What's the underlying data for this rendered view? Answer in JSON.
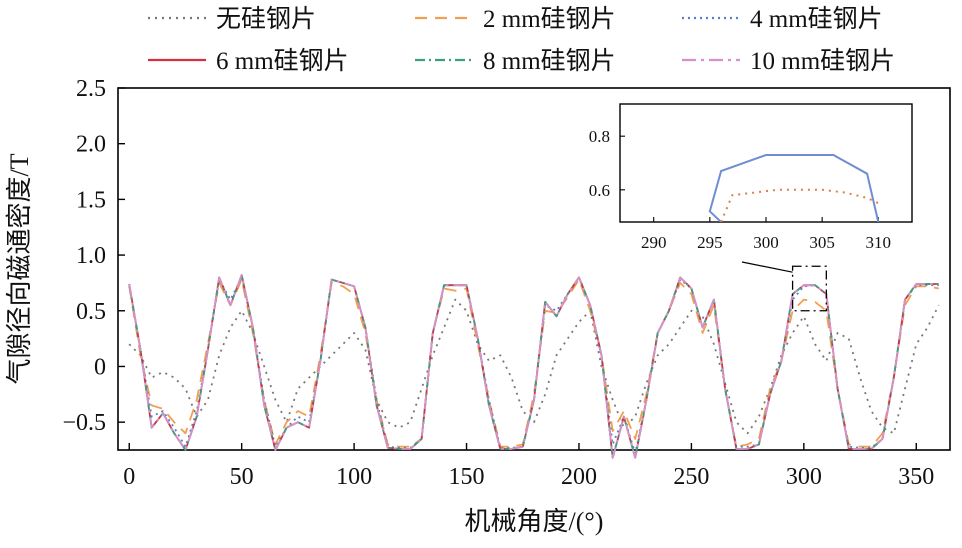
{
  "chart_data": {
    "type": "line",
    "xlabel": "机械角度/(°)",
    "ylabel": "气隙径向磁通密度/T",
    "xlim": [
      -5,
      365
    ],
    "ylim": [
      -0.75,
      2.5
    ],
    "xticks": [
      "0",
      "50",
      "100",
      "150",
      "200",
      "250",
      "300",
      "350"
    ],
    "yticks": [
      "−0.5",
      "0",
      "0.5",
      "1.0",
      "1.5",
      "2.0",
      "2.5"
    ],
    "grid": false,
    "legend_position": "top",
    "series": [
      {
        "name": "无硅钢片",
        "color": "#777777",
        "dash": "2,5",
        "x": [
          0,
          5,
          10,
          15,
          20,
          25,
          30,
          35,
          40,
          45,
          50,
          55,
          60,
          65,
          70,
          75,
          80,
          85,
          90,
          95,
          100,
          105,
          110,
          115,
          120,
          125,
          130,
          135,
          140,
          145,
          150,
          155,
          160,
          165,
          170,
          175,
          180,
          185,
          190,
          195,
          200,
          205,
          210,
          215,
          220,
          225,
          230,
          235,
          240,
          245,
          250,
          255,
          260,
          265,
          270,
          275,
          280,
          285,
          290,
          295,
          300,
          305,
          310,
          315,
          320,
          325,
          330,
          335,
          340,
          345,
          350,
          355,
          360
        ],
        "y": [
          0.2,
          0.1,
          -0.1,
          -0.05,
          -0.1,
          -0.2,
          -0.45,
          -0.3,
          0.1,
          0.35,
          0.5,
          0.3,
          0.0,
          -0.3,
          -0.5,
          -0.2,
          -0.1,
          0.0,
          0.1,
          0.2,
          0.3,
          0.15,
          -0.3,
          -0.5,
          -0.55,
          -0.5,
          -0.2,
          0.1,
          0.35,
          0.6,
          0.5,
          0.2,
          0.05,
          0.1,
          -0.1,
          -0.4,
          -0.5,
          -0.25,
          0.1,
          0.25,
          0.4,
          0.5,
          0.0,
          -0.3,
          -0.55,
          -0.45,
          -0.15,
          0.1,
          0.2,
          0.35,
          0.5,
          0.45,
          0.2,
          -0.15,
          -0.5,
          -0.6,
          -0.45,
          -0.2,
          0.1,
          0.3,
          0.45,
          0.2,
          0.05,
          0.3,
          0.25,
          -0.1,
          -0.4,
          -0.55,
          -0.6,
          -0.2,
          0.2,
          0.35,
          0.55
        ]
      },
      {
        "name": "2 mm硅钢片",
        "color": "#f0a050",
        "dash": "12,8",
        "x": [
          0,
          5,
          10,
          15,
          20,
          25,
          30,
          35,
          40,
          45,
          50,
          55,
          60,
          65,
          70,
          75,
          80,
          85,
          90,
          95,
          100,
          105,
          110,
          115,
          120,
          125,
          130,
          135,
          140,
          145,
          150,
          155,
          160,
          165,
          170,
          175,
          180,
          185,
          190,
          195,
          200,
          205,
          210,
          215,
          220,
          225,
          230,
          235,
          240,
          245,
          250,
          255,
          260,
          265,
          270,
          275,
          280,
          285,
          290,
          295,
          300,
          305,
          310,
          315,
          320,
          325,
          330,
          335,
          340,
          345,
          350,
          355,
          360
        ],
        "y": [
          0.72,
          0.1,
          -0.35,
          -0.38,
          -0.5,
          -0.6,
          -0.3,
          0.2,
          0.75,
          0.55,
          0.78,
          0.3,
          -0.3,
          -0.7,
          -0.5,
          -0.4,
          -0.45,
          0.1,
          0.75,
          0.72,
          0.65,
          0.3,
          -0.3,
          -0.7,
          -0.72,
          -0.72,
          -0.65,
          0.3,
          0.7,
          0.68,
          0.7,
          0.2,
          -0.3,
          -0.72,
          -0.72,
          -0.7,
          -0.25,
          0.5,
          0.48,
          0.62,
          0.78,
          0.5,
          0.1,
          -0.58,
          -0.4,
          -0.65,
          -0.25,
          0.3,
          0.5,
          0.75,
          0.65,
          0.3,
          0.55,
          -0.2,
          -0.72,
          -0.7,
          -0.65,
          -0.2,
          0.05,
          0.5,
          0.6,
          0.58,
          0.5,
          -0.2,
          -0.7,
          -0.72,
          -0.72,
          -0.6,
          -0.1,
          0.55,
          0.72,
          0.72,
          0.7
        ]
      },
      {
        "name": "4 mm硅钢片",
        "color": "#5a7fc0",
        "dash": "2,4",
        "x": [
          0,
          5,
          10,
          15,
          20,
          25,
          30,
          35,
          40,
          45,
          50,
          55,
          60,
          65,
          70,
          75,
          80,
          85,
          90,
          95,
          100,
          105,
          110,
          115,
          120,
          125,
          130,
          135,
          140,
          145,
          150,
          155,
          160,
          165,
          170,
          175,
          180,
          185,
          190,
          195,
          200,
          205,
          210,
          215,
          220,
          225,
          230,
          235,
          240,
          245,
          250,
          255,
          260,
          265,
          270,
          275,
          280,
          285,
          290,
          295,
          300,
          305,
          310,
          315,
          320,
          325,
          330,
          335,
          340,
          345,
          350,
          355,
          360
        ],
        "y": [
          0.73,
          0.15,
          -0.45,
          -0.4,
          -0.55,
          -0.72,
          -0.4,
          0.15,
          0.78,
          0.6,
          0.8,
          0.35,
          -0.3,
          -0.72,
          -0.55,
          -0.45,
          -0.5,
          0.05,
          0.78,
          0.75,
          0.72,
          0.35,
          -0.3,
          -0.72,
          -0.73,
          -0.73,
          -0.65,
          0.3,
          0.73,
          0.73,
          0.73,
          0.25,
          -0.3,
          -0.73,
          -0.73,
          -0.72,
          -0.3,
          0.55,
          0.5,
          0.65,
          0.8,
          0.55,
          0.1,
          -0.7,
          -0.45,
          -0.78,
          -0.3,
          0.3,
          0.5,
          0.78,
          0.7,
          0.35,
          0.6,
          -0.2,
          -0.72,
          -0.72,
          -0.7,
          -0.25,
          0.05,
          0.6,
          0.72,
          0.73,
          0.65,
          -0.2,
          -0.72,
          -0.73,
          -0.73,
          -0.65,
          -0.1,
          0.6,
          0.73,
          0.73,
          0.73
        ]
      },
      {
        "name": "6 mm硅钢片",
        "color": "#d63040",
        "dash": "",
        "x": [
          0,
          5,
          10,
          15,
          20,
          25,
          30,
          35,
          40,
          45,
          50,
          55,
          60,
          65,
          70,
          75,
          80,
          85,
          90,
          95,
          100,
          105,
          110,
          115,
          120,
          125,
          130,
          135,
          140,
          145,
          150,
          155,
          160,
          165,
          170,
          175,
          180,
          185,
          190,
          195,
          200,
          205,
          210,
          215,
          220,
          225,
          230,
          235,
          240,
          245,
          250,
          255,
          260,
          265,
          270,
          275,
          280,
          285,
          290,
          295,
          300,
          305,
          310,
          315,
          320,
          325,
          330,
          335,
          340,
          345,
          350,
          355,
          360
        ],
        "y": [
          0.74,
          0.15,
          -0.55,
          -0.42,
          -0.6,
          -0.75,
          -0.45,
          0.15,
          0.8,
          0.55,
          0.82,
          0.35,
          -0.35,
          -0.75,
          -0.55,
          -0.5,
          -0.55,
          0.05,
          0.78,
          0.75,
          0.72,
          0.35,
          -0.35,
          -0.73,
          -0.74,
          -0.74,
          -0.65,
          0.3,
          0.73,
          0.73,
          0.73,
          0.25,
          -0.35,
          -0.74,
          -0.74,
          -0.72,
          -0.3,
          0.58,
          0.45,
          0.65,
          0.8,
          0.55,
          0.1,
          -0.82,
          -0.45,
          -0.82,
          -0.3,
          0.3,
          0.5,
          0.8,
          0.7,
          0.35,
          0.6,
          -0.2,
          -0.74,
          -0.74,
          -0.7,
          -0.25,
          0.05,
          0.65,
          0.73,
          0.73,
          0.65,
          -0.2,
          -0.74,
          -0.74,
          -0.74,
          -0.65,
          -0.1,
          0.6,
          0.74,
          0.74,
          0.74
        ]
      },
      {
        "name": "8 mm硅钢片",
        "color": "#3aa080",
        "dash": "10,4,2,4",
        "x": [
          0,
          5,
          10,
          15,
          20,
          25,
          30,
          35,
          40,
          45,
          50,
          55,
          60,
          65,
          70,
          75,
          80,
          85,
          90,
          95,
          100,
          105,
          110,
          115,
          120,
          125,
          130,
          135,
          140,
          145,
          150,
          155,
          160,
          165,
          170,
          175,
          180,
          185,
          190,
          195,
          200,
          205,
          210,
          215,
          220,
          225,
          230,
          235,
          240,
          245,
          250,
          255,
          260,
          265,
          270,
          275,
          280,
          285,
          290,
          295,
          300,
          305,
          310,
          315,
          320,
          325,
          330,
          335,
          340,
          345,
          350,
          355,
          360
        ],
        "y": [
          0.74,
          0.15,
          -0.55,
          -0.42,
          -0.6,
          -0.75,
          -0.45,
          0.15,
          0.8,
          0.55,
          0.82,
          0.35,
          -0.35,
          -0.75,
          -0.55,
          -0.5,
          -0.55,
          0.05,
          0.78,
          0.75,
          0.72,
          0.35,
          -0.35,
          -0.73,
          -0.74,
          -0.74,
          -0.65,
          0.3,
          0.73,
          0.73,
          0.73,
          0.25,
          -0.35,
          -0.74,
          -0.74,
          -0.72,
          -0.3,
          0.58,
          0.45,
          0.65,
          0.8,
          0.55,
          0.1,
          -0.82,
          -0.45,
          -0.82,
          -0.3,
          0.3,
          0.5,
          0.8,
          0.7,
          0.35,
          0.6,
          -0.2,
          -0.74,
          -0.74,
          -0.7,
          -0.25,
          0.05,
          0.65,
          0.73,
          0.73,
          0.65,
          -0.2,
          -0.74,
          -0.74,
          -0.74,
          -0.65,
          -0.1,
          0.6,
          0.74,
          0.74,
          0.74
        ]
      },
      {
        "name": "10 mm硅钢片",
        "color": "#d890c8",
        "dash": "14,5,3,5",
        "x": [
          0,
          5,
          10,
          15,
          20,
          25,
          30,
          35,
          40,
          45,
          50,
          55,
          60,
          65,
          70,
          75,
          80,
          85,
          90,
          95,
          100,
          105,
          110,
          115,
          120,
          125,
          130,
          135,
          140,
          145,
          150,
          155,
          160,
          165,
          170,
          175,
          180,
          185,
          190,
          195,
          200,
          205,
          210,
          215,
          220,
          225,
          230,
          235,
          240,
          245,
          250,
          255,
          260,
          265,
          270,
          275,
          280,
          285,
          290,
          295,
          300,
          305,
          310,
          315,
          320,
          325,
          330,
          335,
          340,
          345,
          350,
          355,
          360
        ],
        "y": [
          0.74,
          0.15,
          -0.55,
          -0.42,
          -0.6,
          -0.75,
          -0.45,
          0.15,
          0.8,
          0.55,
          0.82,
          0.35,
          -0.35,
          -0.75,
          -0.55,
          -0.5,
          -0.55,
          0.05,
          0.78,
          0.75,
          0.72,
          0.35,
          -0.35,
          -0.73,
          -0.74,
          -0.74,
          -0.65,
          0.3,
          0.73,
          0.73,
          0.73,
          0.25,
          -0.35,
          -0.74,
          -0.74,
          -0.72,
          -0.3,
          0.58,
          0.45,
          0.65,
          0.8,
          0.55,
          0.1,
          -0.82,
          -0.45,
          -0.82,
          -0.3,
          0.3,
          0.5,
          0.8,
          0.7,
          0.35,
          0.6,
          -0.2,
          -0.74,
          -0.74,
          -0.7,
          -0.25,
          0.05,
          0.65,
          0.73,
          0.73,
          0.65,
          -0.2,
          -0.74,
          -0.74,
          -0.74,
          -0.65,
          -0.1,
          0.6,
          0.74,
          0.74,
          0.74
        ]
      }
    ],
    "inset": {
      "xlim": [
        287,
        313
      ],
      "ylim": [
        0.48,
        0.92
      ],
      "xticks": [
        "290",
        "295",
        "300",
        "305",
        "310"
      ],
      "yticks": [
        "0.6",
        "0.8"
      ],
      "zoom_region": {
        "x": [
          295,
          310
        ],
        "y": [
          0.5,
          0.9
        ]
      },
      "series": [
        {
          "name": "6 mm硅钢片",
          "color": "#6f8ed0",
          "dash": "",
          "x": [
            296,
            295,
            296,
            300,
            304,
            306,
            309,
            310
          ],
          "y": [
            0.48,
            0.52,
            0.67,
            0.73,
            0.73,
            0.73,
            0.66,
            0.48
          ]
        },
        {
          "name": "2 mm硅钢片",
          "color": "#e07a50",
          "dash": "2,5",
          "x": [
            296,
            297,
            299,
            301,
            303,
            305,
            307,
            309,
            310
          ],
          "y": [
            0.48,
            0.58,
            0.59,
            0.6,
            0.6,
            0.6,
            0.59,
            0.57,
            0.55
          ]
        }
      ]
    }
  }
}
